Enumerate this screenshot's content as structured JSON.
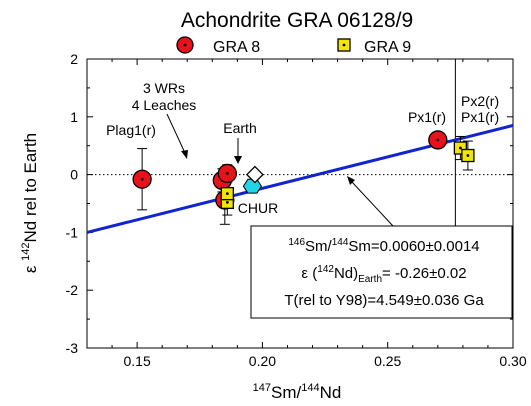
{
  "chart_data": {
    "type": "scatter",
    "title": "Achondrite GRA 06128/9",
    "xlabel": {
      "pre": "",
      "sup1": "147",
      "mid": "Sm/",
      "sup2": "144",
      "post": "Nd"
    },
    "ylabel": {
      "pre": "ε ",
      "sup1": "142",
      "post": "Nd rel to Earth"
    },
    "xlim": [
      0.13,
      0.3
    ],
    "ylim": [
      -3,
      2
    ],
    "xticks": [
      0.15,
      0.2,
      0.25,
      0.3
    ],
    "xtick_labels": [
      "0.15",
      "0.20",
      "0.25",
      "0.30"
    ],
    "yticks": [
      -3,
      -2,
      -1,
      0,
      1,
      2
    ],
    "ytick_labels": [
      "-3",
      "-2",
      "-1",
      "0",
      "1",
      "2"
    ],
    "legend_position": "top",
    "series": [
      {
        "name": "GRA 8",
        "marker": "circle",
        "color": "#e8121b",
        "points": [
          {
            "x": 0.152,
            "y": -0.08,
            "err": 0.53
          },
          {
            "x": 0.184,
            "y": -0.1,
            "err": 0.2
          },
          {
            "x": 0.186,
            "y": 0.02,
            "err": 0.15
          },
          {
            "x": 0.185,
            "y": -0.44,
            "err": 0.42
          },
          {
            "x": 0.27,
            "y": 0.6,
            "err": 0.0
          }
        ]
      },
      {
        "name": "GRA 9",
        "marker": "square",
        "color": "#f2e600",
        "points": [
          {
            "x": 0.186,
            "y": -0.48,
            "err": 0.22
          },
          {
            "x": 0.186,
            "y": -0.33,
            "err": 0.22
          },
          {
            "x": 0.279,
            "y": 0.46,
            "err": 0.2
          },
          {
            "x": 0.282,
            "y": 0.33,
            "err": 0.25
          }
        ]
      }
    ],
    "earth": {
      "x": 0.197,
      "y": 0.0,
      "label": "Earth"
    },
    "chur": {
      "x": 0.196,
      "y": -0.2,
      "label": "CHUR"
    },
    "reference_line_y": 0,
    "regression_line": {
      "x": [
        0.13,
        0.3
      ],
      "y": [
        -1.0,
        0.85
      ],
      "color": "#1024d0"
    },
    "px2_vertical_x": 0.277,
    "annotations": {
      "wrs_line1": "3 WRs",
      "wrs_line2": "4 Leaches",
      "plag": "Plag1(r)",
      "px1": "Px1(r)",
      "px2": "Px2(r)",
      "px1b": "Px1(r)"
    },
    "info_box": {
      "line1": {
        "sup1": "146",
        "a": "Sm/",
        "sup2": "144",
        "b": "Sm=0.0060±0.0014"
      },
      "line2": {
        "a": "ε (",
        "sup1": "142",
        "b": "Nd)",
        "sub": "Earth",
        "c": "= -0.26±0.02"
      },
      "line3": "T(rel to Y98)=4.549±0.036 Ga"
    }
  }
}
